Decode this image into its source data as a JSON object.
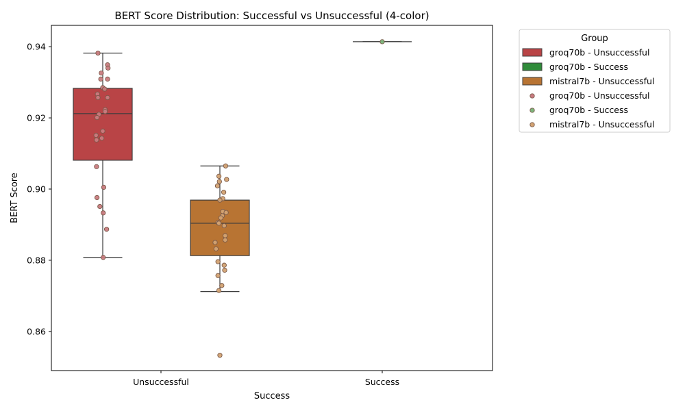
{
  "chart_data": {
    "type": "box",
    "title": "BERT Score Distribution: Successful vs Unsuccessful (4-color)",
    "xlabel": "Success",
    "ylabel": "BERT Score",
    "categories": [
      "Unsuccessful",
      "Success"
    ],
    "ylim": [
      0.849,
      0.946
    ],
    "yticks": [
      0.86,
      0.88,
      0.9,
      0.92,
      0.94
    ],
    "ytick_labels": [
      "0.86",
      "0.88",
      "0.90",
      "0.92",
      "0.94"
    ],
    "legend": {
      "title": "Group",
      "placement": "outside-top-right",
      "box_entries": [
        {
          "label": "groq70b - Unsuccessful",
          "color": "#B94446"
        },
        {
          "label": "groq70b - Success",
          "color": "#2F8B3A"
        },
        {
          "label": "mistral7b - Unsuccessful",
          "color": "#B87433"
        }
      ],
      "point_entries": [
        {
          "label": "groq70b - Unsuccessful",
          "color": "#C97B80"
        },
        {
          "label": "groq70b - Success",
          "color": "#7DB57C"
        },
        {
          "label": "mistral7b - Unsuccessful",
          "color": "#D2A272"
        }
      ]
    },
    "groups": [
      {
        "label": "groq70b - Unsuccessful",
        "category": "Unsuccessful",
        "slot": 0,
        "box_color": "#B94446",
        "point_color": "#C97B80",
        "whisker_low": 0.8808,
        "q1": 0.9081,
        "median": 0.9212,
        "q3": 0.9283,
        "whisker_high": 0.9382,
        "points": [
          0.9382,
          0.9349,
          0.934,
          0.9326,
          0.9309,
          0.9309,
          0.9285,
          0.9281,
          0.9267,
          0.9257,
          0.9257,
          0.9223,
          0.9218,
          0.921,
          0.9201,
          0.9163,
          0.9151,
          0.9143,
          0.9138,
          0.9063,
          0.9005,
          0.8976,
          0.8951,
          0.8933,
          0.8887,
          0.8808
        ],
        "jitter": [
          -0.5,
          0.5,
          0.55,
          -0.15,
          -0.2,
          0.5,
          0.0,
          0.2,
          -0.55,
          -0.5,
          0.5,
          0.25,
          0.25,
          -0.4,
          -0.6,
          0.0,
          -0.7,
          -0.1,
          -0.65,
          -0.65,
          0.1,
          -0.6,
          -0.3,
          0.05,
          0.4,
          0.05
        ]
      },
      {
        "label": "mistral7b - Unsuccessful",
        "category": "Unsuccessful",
        "slot": 1,
        "box_color": "#B87433",
        "point_color": "#D2A272",
        "whisker_low": 0.8712,
        "q1": 0.8813,
        "median": 0.8904,
        "q3": 0.8969,
        "whisker_high": 0.9065,
        "points": [
          0.9065,
          0.9036,
          0.9027,
          0.9021,
          0.9009,
          0.8991,
          0.8973,
          0.8969,
          0.8937,
          0.8934,
          0.8925,
          0.8919,
          0.8906,
          0.8904,
          0.8897,
          0.8869,
          0.8857,
          0.885,
          0.8832,
          0.8796,
          0.8786,
          0.8772,
          0.8757,
          0.8729,
          0.8715,
          0.8533
        ],
        "jitter": [
          0.6,
          -0.1,
          0.7,
          -0.05,
          -0.25,
          0.4,
          0.3,
          0.0,
          0.3,
          0.65,
          0.25,
          0.1,
          -0.2,
          -0.1,
          0.45,
          0.55,
          0.55,
          -0.5,
          -0.4,
          -0.2,
          0.45,
          0.5,
          -0.2,
          0.2,
          -0.1,
          0.0
        ]
      },
      {
        "label": "groq70b - Success",
        "category": "Success",
        "slot": 2,
        "box_color": "#2F8B3A",
        "point_color": "#7DB57C",
        "whisker_low": 0.9414,
        "q1": 0.9414,
        "median": 0.9414,
        "q3": 0.9414,
        "whisker_high": 0.9414,
        "points": [
          0.9414
        ],
        "jitter": [
          0.0
        ]
      }
    ]
  }
}
